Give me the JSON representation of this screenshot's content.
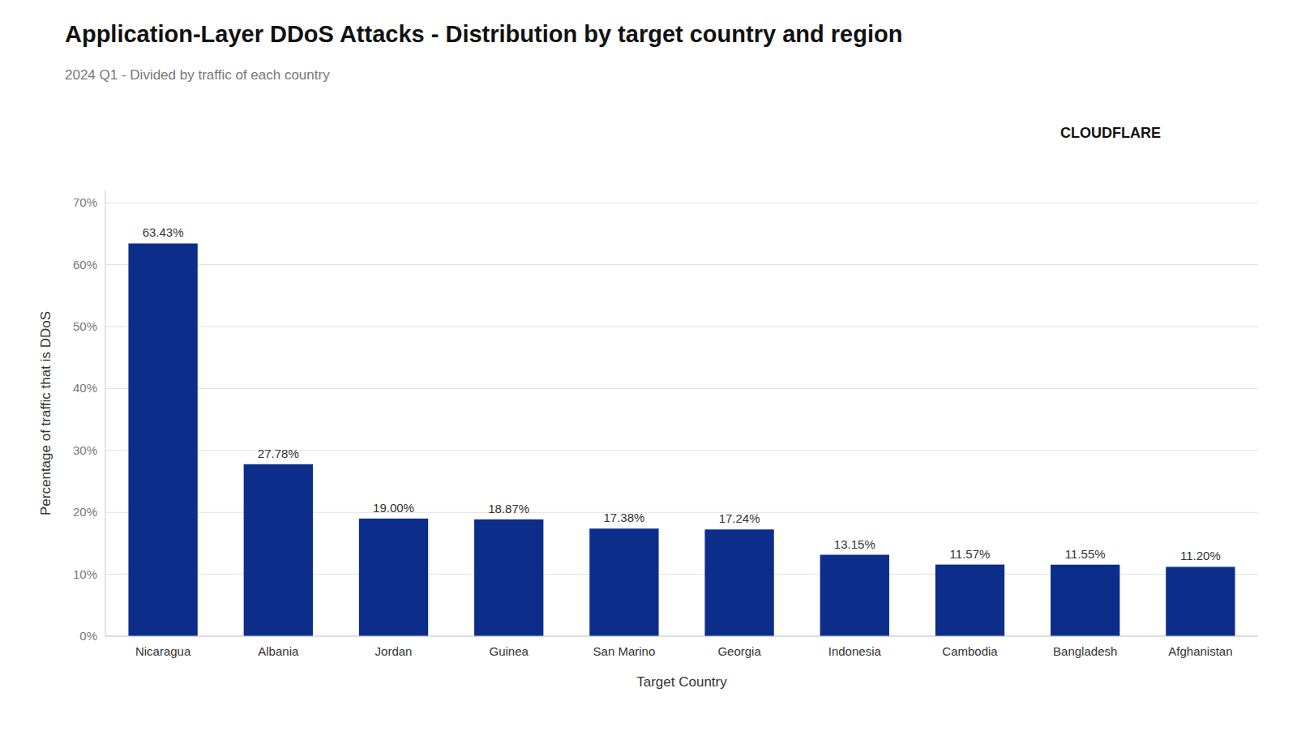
{
  "chart_data": {
    "type": "bar",
    "title": "Application-Layer DDoS Attacks - Distribution by target country and region",
    "subtitle": "2024 Q1 - Divided by traffic of each country",
    "x_label": "Target Country",
    "y_label": "Percentage of traffic that is DDoS",
    "annotations": [
      {
        "text": "CLOUDFLARE"
      }
    ],
    "categories": [
      "Nicaragua",
      "Albania",
      "Jordan",
      "Guinea",
      "San Marino",
      "Georgia",
      "Indonesia",
      "Cambodia",
      "Bangladesh",
      "Afghanistan"
    ],
    "values": [
      63.43,
      27.78,
      19.0,
      18.87,
      17.38,
      17.24,
      13.15,
      11.57,
      11.55,
      11.2
    ],
    "value_labels": [
      "63.43%",
      "27.78%",
      "19.00%",
      "18.87%",
      "17.38%",
      "17.24%",
      "13.15%",
      "11.57%",
      "11.55%",
      "11.20%"
    ],
    "data_labels": true,
    "color": "#0d2d8a",
    "ylim": [
      0,
      72
    ],
    "yticks": [
      {
        "value": 0,
        "label": "0%"
      },
      {
        "value": 10,
        "label": "10%"
      },
      {
        "value": 20,
        "label": "20%"
      },
      {
        "value": 30,
        "label": "30%"
      },
      {
        "value": 40,
        "label": "40%"
      },
      {
        "value": 50,
        "label": "50%"
      },
      {
        "value": 60,
        "label": "60%"
      },
      {
        "value": 70,
        "label": "70%"
      }
    ],
    "grid": true
  }
}
